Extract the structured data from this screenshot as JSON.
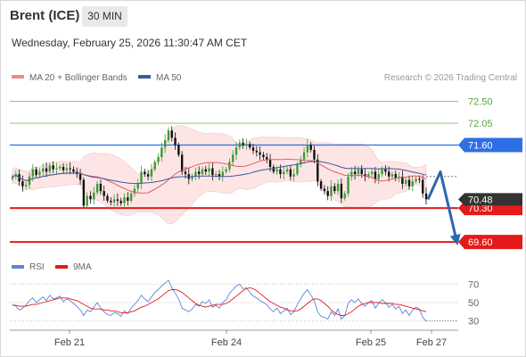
{
  "header": {
    "instrument": "Brent (ICE)",
    "interval": "30 MIN",
    "datetime": "Wednesday, February 25, 2026 11:30:47 AM CET"
  },
  "legend": {
    "ma20_label": "MA 20 + Bollinger Bands",
    "ma50_label": "MA 50",
    "credit": "Research © 2026 Trading Central"
  },
  "rsi_legend": {
    "rsi_label": "RSI",
    "ma_label": "9MA"
  },
  "colors": {
    "up_candle": "#3d9b35",
    "down_candle": "#111111",
    "ma20": "#e06060",
    "ma50": "#3a5b9a",
    "bands_fill": "#fde0e0",
    "pivot_line": "#2f6fe4",
    "support_line": "#e51a1a",
    "resistance_line": "#7cc160",
    "arrow": "#2c67ad"
  },
  "chart_data": [
    {
      "type": "candlestick",
      "ylim": [
        69.4,
        72.75
      ],
      "x_ticks": [
        "Feb 21",
        "Feb 24",
        "Feb 25",
        "Feb 27"
      ],
      "current_price": "70.48",
      "levels": [
        {
          "price": 72.5,
          "label": "72.50",
          "kind": "resistance"
        },
        {
          "price": 72.05,
          "label": "72.05",
          "kind": "resistance"
        },
        {
          "price": 71.6,
          "label": "71.60",
          "kind": "pivot"
        },
        {
          "price": 70.3,
          "label": "70.30",
          "kind": "support"
        },
        {
          "price": 69.6,
          "label": "69.60",
          "kind": "support"
        }
      ],
      "scenario": [
        "71.60",
        "69.60"
      ],
      "closes": [
        70.95,
        71.0,
        70.85,
        70.75,
        70.78,
        70.95,
        71.1,
        70.98,
        71.05,
        71.12,
        71.05,
        71.18,
        71.1,
        71.12,
        71.15,
        71.08,
        71.12,
        71.1,
        71.05,
        71.0,
        70.88,
        70.35,
        70.55,
        70.48,
        70.62,
        70.8,
        70.65,
        70.55,
        70.45,
        70.42,
        70.48,
        70.45,
        70.4,
        70.52,
        70.45,
        70.6,
        70.7,
        70.8,
        71.05,
        71.0,
        70.95,
        71.1,
        71.25,
        71.35,
        71.55,
        71.7,
        71.9,
        71.75,
        71.6,
        71.4,
        71.05,
        71.0,
        70.9,
        70.95,
        71.05,
        71.0,
        71.1,
        71.05,
        71.12,
        70.98,
        71.0,
        70.95,
        71.05,
        71.1,
        71.25,
        71.4,
        71.55,
        71.65,
        71.6,
        71.62,
        71.55,
        71.48,
        71.45,
        71.4,
        71.35,
        71.3,
        71.15,
        71.05,
        71.1,
        71.0,
        71.05,
        71.1,
        70.95,
        71.0,
        71.2,
        71.3,
        71.45,
        71.6,
        71.5,
        71.3,
        70.85,
        70.7,
        70.65,
        70.55,
        70.75,
        70.65,
        70.8,
        70.5,
        70.6,
        70.95,
        71.05,
        71.0,
        71.1,
        71.0,
        70.95,
        71.0,
        71.05,
        70.9,
        71.0,
        71.1,
        71.05,
        70.95,
        71.0,
        70.92,
        70.95,
        70.8,
        70.88,
        70.75,
        70.85,
        70.9,
        70.88,
        70.6,
        70.48
      ]
    },
    {
      "type": "line",
      "title": "RSI",
      "ylim": [
        20,
        80
      ],
      "y_ticks": [
        70,
        50,
        30
      ],
      "series": [
        {
          "name": "RSI",
          "values": [
            48,
            46,
            42,
            44,
            47,
            52,
            55,
            50,
            53,
            56,
            52,
            58,
            54,
            55,
            57,
            51,
            54,
            52,
            49,
            46,
            42,
            36,
            42,
            40,
            45,
            50,
            44,
            40,
            37,
            36,
            39,
            38,
            35,
            41,
            38,
            44,
            48,
            52,
            58,
            54,
            51,
            56,
            61,
            64,
            68,
            71,
            74,
            66,
            60,
            54,
            44,
            42,
            40,
            43,
            48,
            46,
            51,
            49,
            53,
            45,
            47,
            44,
            50,
            53,
            60,
            64,
            68,
            70,
            65,
            66,
            61,
            57,
            55,
            52,
            50,
            48,
            43,
            40,
            44,
            38,
            41,
            44,
            37,
            40,
            48,
            54,
            60,
            64,
            58,
            52,
            40,
            35,
            34,
            32,
            40,
            36,
            43,
            32,
            36,
            49,
            53,
            50,
            54,
            49,
            46,
            50,
            52,
            44,
            49,
            53,
            50,
            45,
            48,
            43,
            46,
            38,
            42,
            36,
            42,
            45,
            43,
            34,
            30
          ]
        },
        {
          "name": "9MA",
          "values": [
            47,
            47,
            46,
            46,
            46,
            47,
            48,
            48,
            49,
            50,
            51,
            52,
            53,
            54,
            55,
            55,
            55,
            54,
            53,
            52,
            50,
            48,
            46,
            44,
            43,
            43,
            43,
            42,
            42,
            41,
            41,
            40,
            39,
            39,
            39,
            40,
            41,
            43,
            45,
            46,
            48,
            50,
            52,
            54,
            57,
            60,
            63,
            64,
            64,
            63,
            61,
            58,
            55,
            52,
            49,
            47,
            46,
            45,
            46,
            47,
            48,
            48,
            48,
            49,
            51,
            54,
            57,
            60,
            63,
            65,
            66,
            65,
            63,
            60,
            57,
            54,
            51,
            49,
            47,
            45,
            44,
            42,
            41,
            41,
            41,
            43,
            46,
            49,
            52,
            54,
            54,
            52,
            49,
            46,
            42,
            39,
            37,
            36,
            36,
            38,
            40,
            43,
            46,
            48,
            49,
            50,
            50,
            50,
            50,
            49,
            49,
            49,
            49,
            48,
            48,
            47,
            46,
            45,
            44,
            43,
            42,
            41,
            40
          ]
        }
      ]
    }
  ]
}
